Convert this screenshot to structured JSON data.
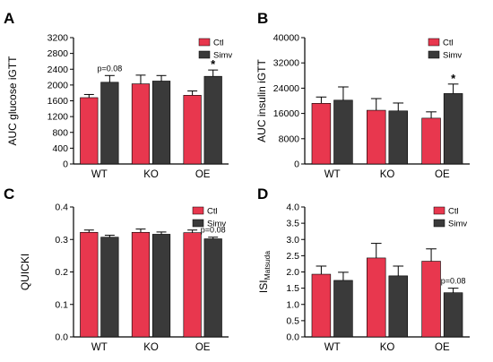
{
  "colors": {
    "ctl": "#e8374e",
    "simv": "#3a3a3a"
  },
  "chart_data": [
    {
      "panel": "A",
      "type": "bar",
      "ylabel": "AUC glucose iGTT",
      "categories": [
        "WT",
        "KO",
        "OE"
      ],
      "ylim": [
        0,
        3200
      ],
      "yticks": [
        "0",
        "400",
        "800",
        "1200",
        "1600",
        "2000",
        "2400",
        "2800",
        "3200"
      ],
      "legend_placement": "top-right",
      "series": [
        {
          "name": "Ctl",
          "values": [
            1680,
            2030,
            1740
          ],
          "errors": [
            80,
            220,
            110
          ]
        },
        {
          "name": "Simv",
          "values": [
            2070,
            2100,
            2220
          ],
          "errors": [
            170,
            140,
            160
          ]
        }
      ],
      "annotations": [
        {
          "category": "WT",
          "series": "Simv",
          "text": "p=0.08",
          "kind": "p"
        },
        {
          "category": "OE",
          "series": "Simv",
          "text": "*",
          "kind": "star"
        }
      ]
    },
    {
      "panel": "B",
      "type": "bar",
      "ylabel": "AUC insulin iGTT",
      "categories": [
        "WT",
        "KO",
        "OE"
      ],
      "ylim": [
        0,
        40000
      ],
      "yticks": [
        "0",
        "8000",
        "16000",
        "24000",
        "32000",
        "40000"
      ],
      "legend_placement": "top-right",
      "series": [
        {
          "name": "Ctl",
          "values": [
            19200,
            17000,
            14500
          ],
          "errors": [
            2000,
            3700,
            2000
          ]
        },
        {
          "name": "Simv",
          "values": [
            20200,
            16800,
            22300
          ],
          "errors": [
            4200,
            2500,
            3000
          ]
        }
      ],
      "annotations": [
        {
          "category": "OE",
          "series": "Simv",
          "text": "*",
          "kind": "star"
        }
      ]
    },
    {
      "panel": "C",
      "type": "bar",
      "ylabel": "QUICKI",
      "categories": [
        "WT",
        "KO",
        "OE"
      ],
      "ylim": [
        0,
        0.4
      ],
      "yticks": [
        "0.0",
        "0.1",
        "0.2",
        "0.3",
        "0.4"
      ],
      "legend_placement": "top-right",
      "series": [
        {
          "name": "Ctl",
          "values": [
            0.322,
            0.322,
            0.321
          ],
          "errors": [
            0.007,
            0.01,
            0.008
          ]
        },
        {
          "name": "Simv",
          "values": [
            0.307,
            0.316,
            0.302
          ],
          "errors": [
            0.006,
            0.007,
            0.005
          ]
        }
      ],
      "annotations": [
        {
          "category": "OE",
          "series": "Simv",
          "text": "p=0.08",
          "kind": "p"
        }
      ]
    },
    {
      "panel": "D",
      "type": "bar",
      "ylabel_main": "ISI",
      "ylabel_sub": "Matsuda",
      "categories": [
        "WT",
        "KO",
        "OE"
      ],
      "ylim": [
        0,
        4.0
      ],
      "yticks": [
        "0.0",
        "0.5",
        "1.0",
        "1.5",
        "2.0",
        "2.5",
        "3.0",
        "3.5",
        "4.0"
      ],
      "legend_placement": "top-right",
      "series": [
        {
          "name": "Ctl",
          "values": [
            1.93,
            2.43,
            2.33
          ],
          "errors": [
            0.25,
            0.45,
            0.38
          ]
        },
        {
          "name": "Simv",
          "values": [
            1.74,
            1.88,
            1.36
          ],
          "errors": [
            0.25,
            0.3,
            0.14
          ]
        }
      ],
      "annotations": [
        {
          "category": "OE",
          "series": "Simv",
          "text": "p=0.08",
          "kind": "p"
        }
      ]
    }
  ]
}
